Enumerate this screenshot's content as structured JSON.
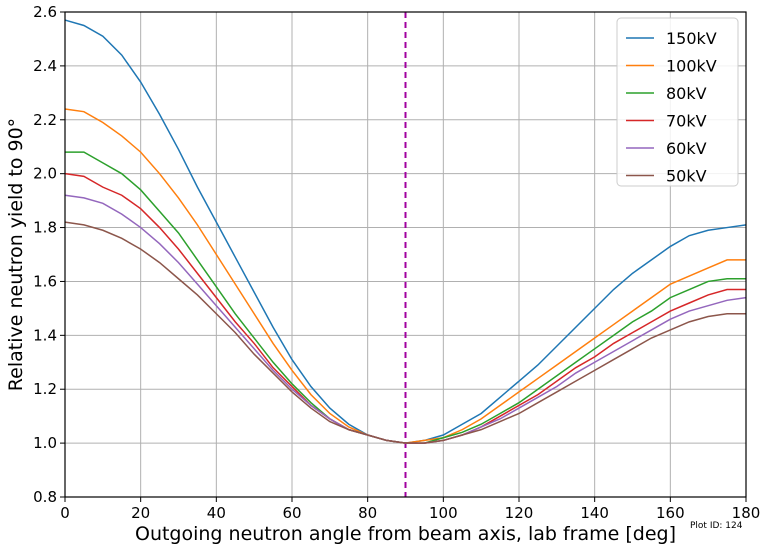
{
  "chart_data": {
    "type": "line",
    "title": "",
    "xlabel": "Outgoing neutron angle from beam axis, lab frame [deg]",
    "ylabel": "Relative neutron yield to 90°",
    "xlim": [
      0,
      180
    ],
    "ylim": [
      0.8,
      2.6
    ],
    "xticks": [
      "0",
      "20",
      "40",
      "60",
      "80",
      "100",
      "120",
      "140",
      "160",
      "180"
    ],
    "yticks": [
      "0.8",
      "1.0",
      "1.2",
      "1.4",
      "1.6",
      "1.8",
      "2.0",
      "2.2",
      "2.4",
      "2.6"
    ],
    "grid": true,
    "legend_position": "top-right",
    "reference_line": {
      "x": 90,
      "style": "dashed",
      "color": "#a0009f"
    },
    "annotation": "Plot ID: 124",
    "x": [
      0,
      5,
      10,
      15,
      20,
      25,
      30,
      35,
      40,
      45,
      50,
      55,
      60,
      65,
      70,
      75,
      80,
      85,
      90,
      95,
      100,
      105,
      110,
      115,
      120,
      125,
      130,
      135,
      140,
      145,
      150,
      155,
      160,
      165,
      170,
      175,
      180
    ],
    "series": [
      {
        "name": "150kV",
        "color": "#1f77b4",
        "values": [
          2.57,
          2.55,
          2.51,
          2.44,
          2.34,
          2.22,
          2.09,
          1.95,
          1.82,
          1.69,
          1.56,
          1.43,
          1.31,
          1.21,
          1.13,
          1.07,
          1.03,
          1.01,
          1.0,
          1.01,
          1.03,
          1.07,
          1.11,
          1.17,
          1.23,
          1.29,
          1.36,
          1.43,
          1.5,
          1.57,
          1.63,
          1.68,
          1.73,
          1.77,
          1.79,
          1.8,
          1.81
        ]
      },
      {
        "name": "100kV",
        "color": "#ff7f0e",
        "values": [
          2.24,
          2.23,
          2.19,
          2.14,
          2.08,
          2.0,
          1.91,
          1.81,
          1.7,
          1.59,
          1.48,
          1.37,
          1.27,
          1.18,
          1.11,
          1.06,
          1.03,
          1.01,
          1.0,
          1.01,
          1.02,
          1.05,
          1.09,
          1.14,
          1.19,
          1.24,
          1.29,
          1.34,
          1.39,
          1.44,
          1.49,
          1.54,
          1.59,
          1.62,
          1.65,
          1.68,
          1.68
        ]
      },
      {
        "name": "80kV",
        "color": "#2ca02c",
        "values": [
          2.08,
          2.08,
          2.04,
          2.0,
          1.94,
          1.86,
          1.78,
          1.68,
          1.58,
          1.48,
          1.39,
          1.3,
          1.22,
          1.15,
          1.09,
          1.05,
          1.03,
          1.01,
          1.0,
          1.0,
          1.02,
          1.04,
          1.07,
          1.11,
          1.15,
          1.2,
          1.25,
          1.3,
          1.35,
          1.4,
          1.45,
          1.49,
          1.54,
          1.57,
          1.6,
          1.61,
          1.61
        ]
      },
      {
        "name": "70kV",
        "color": "#d62728",
        "values": [
          2.0,
          1.99,
          1.95,
          1.92,
          1.87,
          1.8,
          1.72,
          1.63,
          1.54,
          1.45,
          1.37,
          1.28,
          1.21,
          1.14,
          1.09,
          1.05,
          1.03,
          1.01,
          1.0,
          1.0,
          1.01,
          1.03,
          1.06,
          1.1,
          1.14,
          1.18,
          1.23,
          1.28,
          1.32,
          1.37,
          1.41,
          1.45,
          1.49,
          1.52,
          1.55,
          1.57,
          1.57
        ]
      },
      {
        "name": "60kV",
        "color": "#9467bd",
        "values": [
          1.92,
          1.91,
          1.89,
          1.85,
          1.8,
          1.74,
          1.67,
          1.59,
          1.51,
          1.43,
          1.35,
          1.27,
          1.2,
          1.14,
          1.09,
          1.05,
          1.03,
          1.01,
          1.0,
          1.0,
          1.01,
          1.03,
          1.06,
          1.09,
          1.13,
          1.17,
          1.21,
          1.26,
          1.3,
          1.34,
          1.38,
          1.42,
          1.46,
          1.49,
          1.51,
          1.53,
          1.54
        ]
      },
      {
        "name": "50kV",
        "color": "#8c564b",
        "values": [
          1.82,
          1.81,
          1.79,
          1.76,
          1.72,
          1.67,
          1.61,
          1.55,
          1.48,
          1.41,
          1.33,
          1.26,
          1.19,
          1.13,
          1.08,
          1.05,
          1.03,
          1.01,
          1.0,
          1.0,
          1.01,
          1.03,
          1.05,
          1.08,
          1.11,
          1.15,
          1.19,
          1.23,
          1.27,
          1.31,
          1.35,
          1.39,
          1.42,
          1.45,
          1.47,
          1.48,
          1.48
        ]
      }
    ]
  }
}
